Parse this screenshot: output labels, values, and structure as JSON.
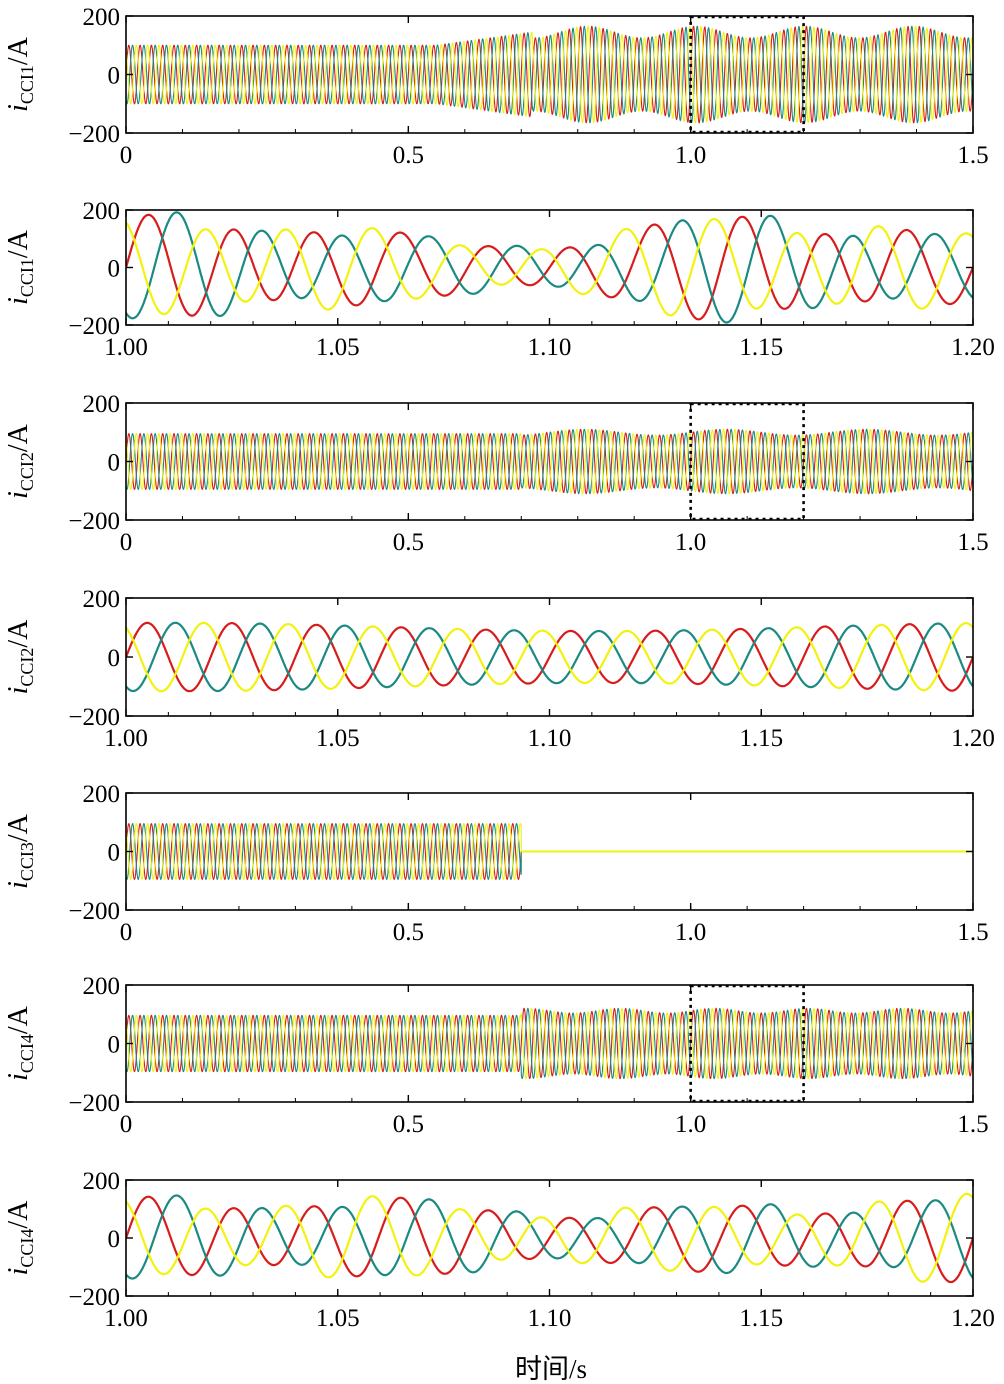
{
  "colors": {
    "phase_a": "#d81b1b",
    "phase_b": "#f2f20f",
    "phase_c": "#1a8a82",
    "axis": "#000000",
    "zoom_box": "#000000"
  },
  "chart_data": [
    {
      "type": "line",
      "ylabel": {
        "var": "i",
        "sub": "CCI1",
        "unit": "/A"
      },
      "xlim": [
        0,
        1.5
      ],
      "ylim": [
        -200,
        200
      ],
      "xticks": [
        "0",
        "0.5",
        "1.0",
        "1.5"
      ],
      "yticks": [
        "200",
        "0",
        "−200"
      ],
      "grid": false,
      "series_style": "three-phase 50 Hz sinusoids (red / yellow / teal), amplitude ~100 A until 0.55 s, then ~160 A with beat modulation",
      "zoom_box": [
        1.0,
        1.2
      ]
    },
    {
      "type": "line",
      "ylabel": {
        "var": "i",
        "sub": "CCI1",
        "unit": "/A"
      },
      "xlim": [
        1.0,
        1.2
      ],
      "ylim": [
        -200,
        200
      ],
      "xticks": [
        "1.00",
        "1.05",
        "1.10",
        "1.15",
        "1.20"
      ],
      "yticks": [
        "200",
        "0",
        "−200"
      ],
      "grid": false,
      "series_style": "zoomed three-phase currents, peaks ~160 A with amplitude beating"
    },
    {
      "type": "line",
      "ylabel": {
        "var": "i",
        "sub": "CCI2",
        "unit": "/A"
      },
      "xlim": [
        0,
        1.5
      ],
      "ylim": [
        -200,
        200
      ],
      "xticks": [
        "0",
        "0.5",
        "1.0",
        "1.5"
      ],
      "yticks": [
        "200",
        "0",
        "−200"
      ],
      "grid": false,
      "series_style": "three-phase sinusoids ~95 A, slight disturbance after 0.7 s",
      "zoom_box": [
        1.0,
        1.2
      ]
    },
    {
      "type": "line",
      "ylabel": {
        "var": "i",
        "sub": "CCI2",
        "unit": "/A"
      },
      "xlim": [
        1.0,
        1.2
      ],
      "ylim": [
        -200,
        200
      ],
      "xticks": [
        "1.00",
        "1.05",
        "1.10",
        "1.15",
        "1.20"
      ],
      "yticks": [
        "200",
        "0",
        "−200"
      ],
      "grid": false,
      "series_style": "zoomed three-phase currents, peaks ~90-120 A"
    },
    {
      "type": "line",
      "ylabel": {
        "var": "i",
        "sub": "CCI3",
        "unit": "/A"
      },
      "xlim": [
        0,
        1.5
      ],
      "ylim": [
        -200,
        200
      ],
      "xticks": [
        "0",
        "0.5",
        "1.0",
        "1.5"
      ],
      "yticks": [
        "200",
        "0",
        "−200"
      ],
      "grid": false,
      "series_style": "three-phase sinusoids ~95 A until 0.7 s, then 0 A (unit tripped)"
    },
    {
      "type": "line",
      "ylabel": {
        "var": "i",
        "sub": "CCI4",
        "unit": "/A"
      },
      "xlim": [
        0,
        1.5
      ],
      "ylim": [
        -200,
        200
      ],
      "xticks": [
        "0",
        "0.5",
        "1.0",
        "1.5"
      ],
      "yticks": [
        "200",
        "0",
        "−200"
      ],
      "grid": false,
      "series_style": "three-phase sinusoids ~95 A, ~110-120 A after 0.7 s",
      "zoom_box": [
        1.0,
        1.2
      ]
    },
    {
      "type": "line",
      "ylabel": {
        "var": "i",
        "sub": "CCI4",
        "unit": "/A"
      },
      "xlim": [
        1.0,
        1.2
      ],
      "ylim": [
        -200,
        200
      ],
      "xticks": [
        "1.00",
        "1.05",
        "1.10",
        "1.15",
        "1.20"
      ],
      "yticks": [
        "200",
        "0",
        "−200"
      ],
      "grid": false,
      "series_style": "zoomed three-phase currents, peaks ~90-125 A with beating"
    }
  ],
  "xlabel": "时间/s"
}
